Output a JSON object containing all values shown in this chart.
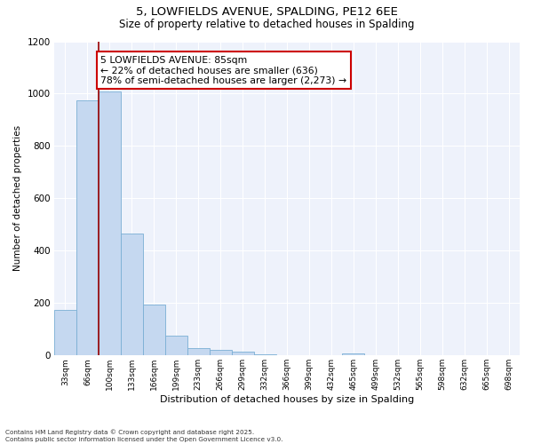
{
  "title_line1": "5, LOWFIELDS AVENUE, SPALDING, PE12 6EE",
  "title_line2": "Size of property relative to detached houses in Spalding",
  "xlabel": "Distribution of detached houses by size in Spalding",
  "ylabel": "Number of detached properties",
  "bar_color": "#c5d8f0",
  "bar_edge_color": "#7aafd4",
  "background_color": "#eef2fb",
  "grid_color": "#ffffff",
  "categories": [
    "33sqm",
    "66sqm",
    "100sqm",
    "133sqm",
    "166sqm",
    "199sqm",
    "233sqm",
    "266sqm",
    "299sqm",
    "332sqm",
    "366sqm",
    "399sqm",
    "432sqm",
    "465sqm",
    "499sqm",
    "532sqm",
    "565sqm",
    "598sqm",
    "632sqm",
    "665sqm",
    "698sqm"
  ],
  "values": [
    175,
    975,
    1010,
    465,
    195,
    75,
    28,
    22,
    15,
    5,
    0,
    0,
    0,
    7,
    0,
    0,
    0,
    0,
    0,
    0,
    0
  ],
  "red_line_x": 1.5,
  "annotation_title": "5 LOWFIELDS AVENUE: 85sqm",
  "annotation_line2": "← 22% of detached houses are smaller (636)",
  "annotation_line3": "78% of semi-detached houses are larger (2,273) →",
  "annotation_box_color": "#ffffff",
  "annotation_box_edge_color": "#cc0000",
  "red_line_color": "#990000",
  "ylim": [
    0,
    1200
  ],
  "yticks": [
    0,
    200,
    400,
    600,
    800,
    1000,
    1200
  ],
  "footer_line1": "Contains HM Land Registry data © Crown copyright and database right 2025.",
  "footer_line2": "Contains public sector information licensed under the Open Government Licence v3.0."
}
